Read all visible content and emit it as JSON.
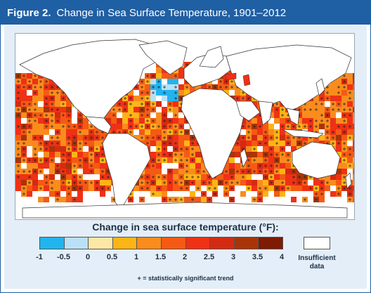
{
  "header": {
    "figure_label": "Figure 2.",
    "title": "Change in Sea Surface Temperature, 1901–2012"
  },
  "legend": {
    "title": "Change in sea surface temperature (°F):",
    "ticks": [
      "-1",
      "-0.5",
      "0",
      "0.5",
      "1",
      "1.5",
      "2",
      "2.5",
      "3",
      "3.5",
      "4"
    ],
    "colors": [
      "#22b4ee",
      "#b9e0f6",
      "#ffe8a6",
      "#fdb515",
      "#f98c1c",
      "#f55a14",
      "#ef3116",
      "#d52a12",
      "#a93408",
      "#7f1a05"
    ],
    "insufficient_line1": "Insufficient",
    "insufficient_line2": "data",
    "note": "+ = statistically significant trend"
  },
  "colors": {
    "header_bg": "#1f5fa3",
    "panel_bg": "#e4eef8",
    "land": "#ffffff",
    "borders": "#444444"
  }
}
